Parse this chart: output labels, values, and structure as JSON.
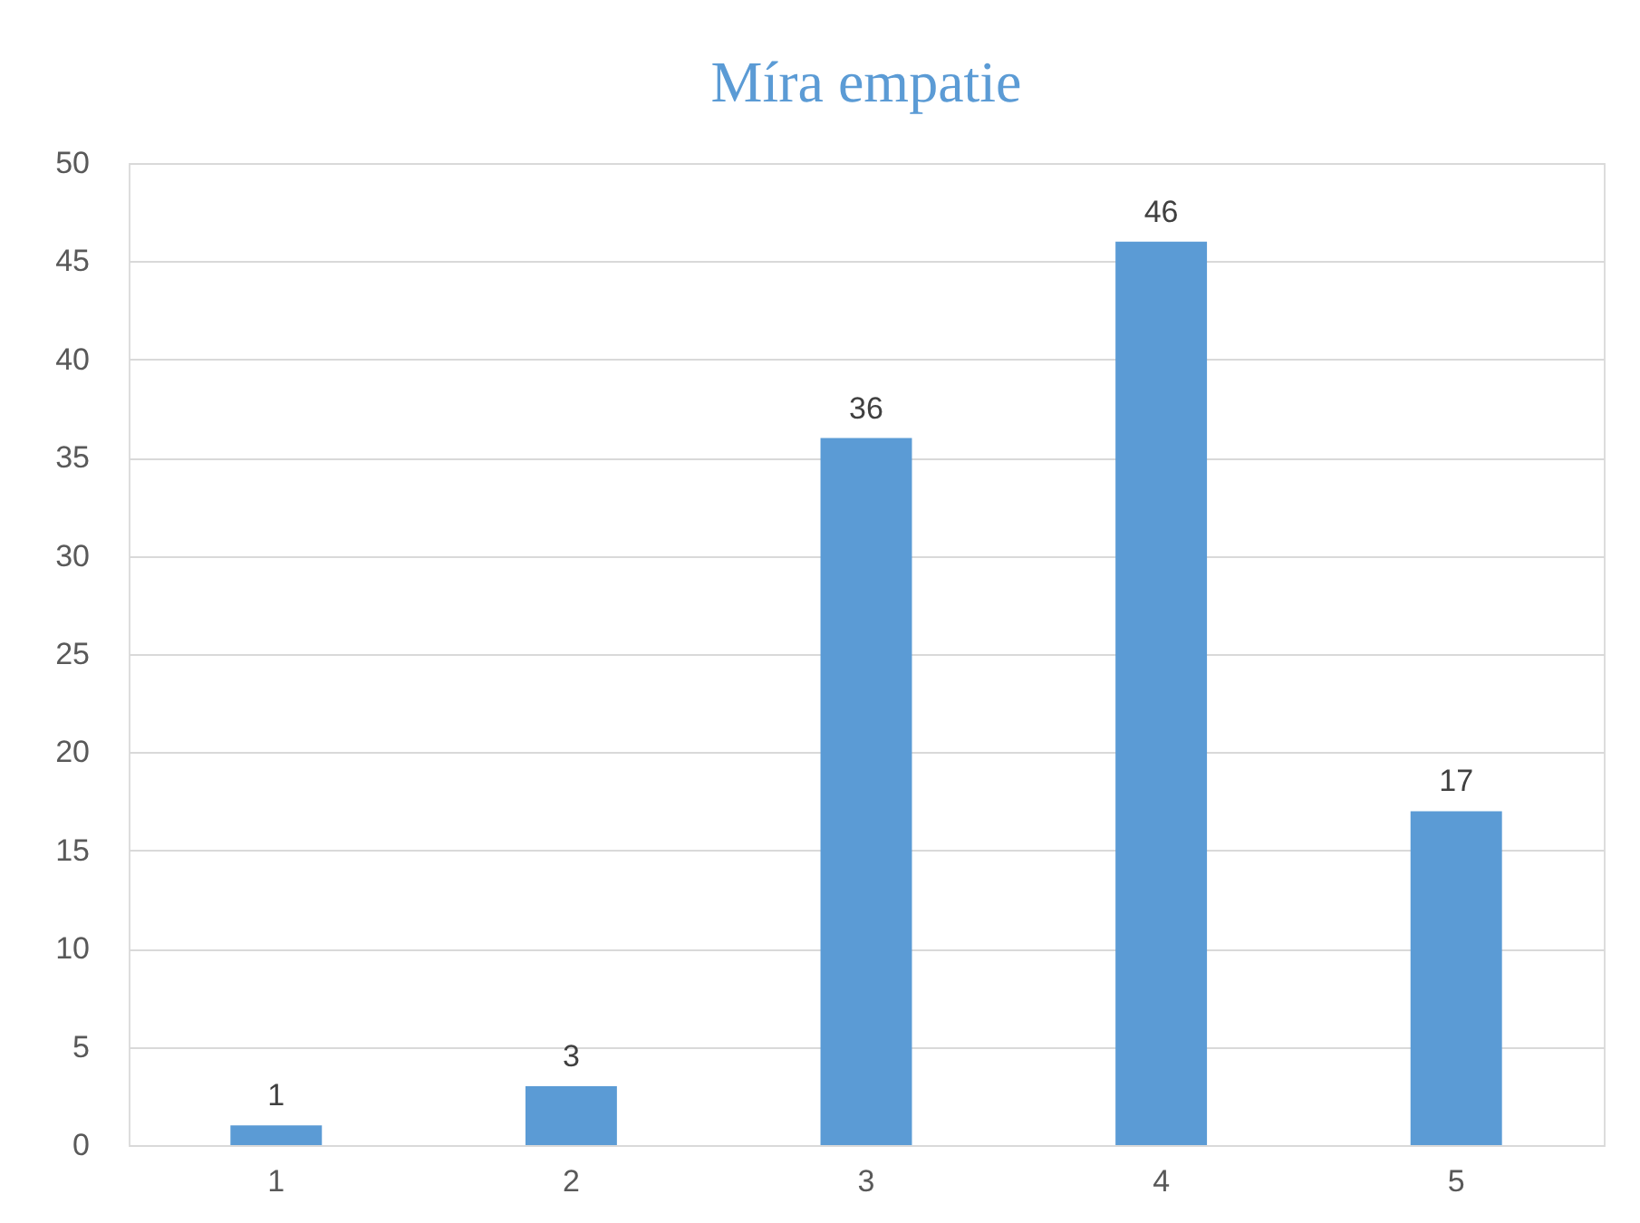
{
  "chart_data": {
    "type": "bar",
    "title": "Míra empatie",
    "categories": [
      "1",
      "2",
      "3",
      "4",
      "5"
    ],
    "values": [
      1,
      3,
      36,
      46,
      17
    ],
    "color": "#5b9bd5",
    "ylim": [
      0,
      50
    ],
    "yticks": [
      0,
      5,
      10,
      15,
      20,
      25,
      30,
      35,
      40,
      45,
      50
    ],
    "grid": "y",
    "data_labels": true
  }
}
